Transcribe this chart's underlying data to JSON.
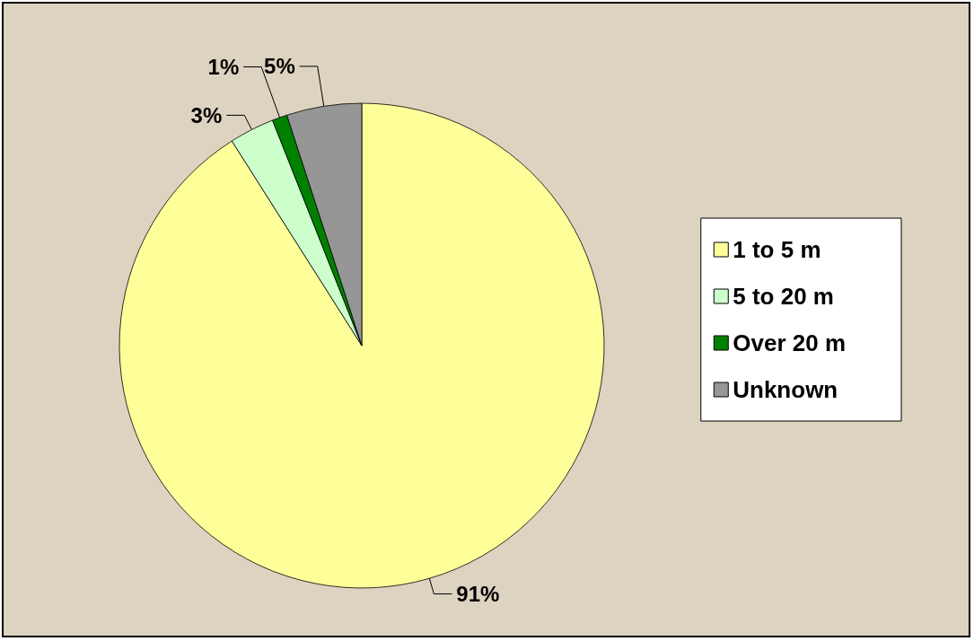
{
  "chart_data": {
    "type": "pie",
    "categories": [
      "1 to 5 m",
      "5 to 20 m",
      "Over 20 m",
      "Unknown"
    ],
    "values": [
      91,
      3,
      1,
      5
    ],
    "colors": [
      "#ffff99",
      "#ccffcc",
      "#008000",
      "#969696"
    ],
    "value_labels": [
      "91%",
      "3%",
      "1%",
      "5%"
    ],
    "legend": "right"
  }
}
